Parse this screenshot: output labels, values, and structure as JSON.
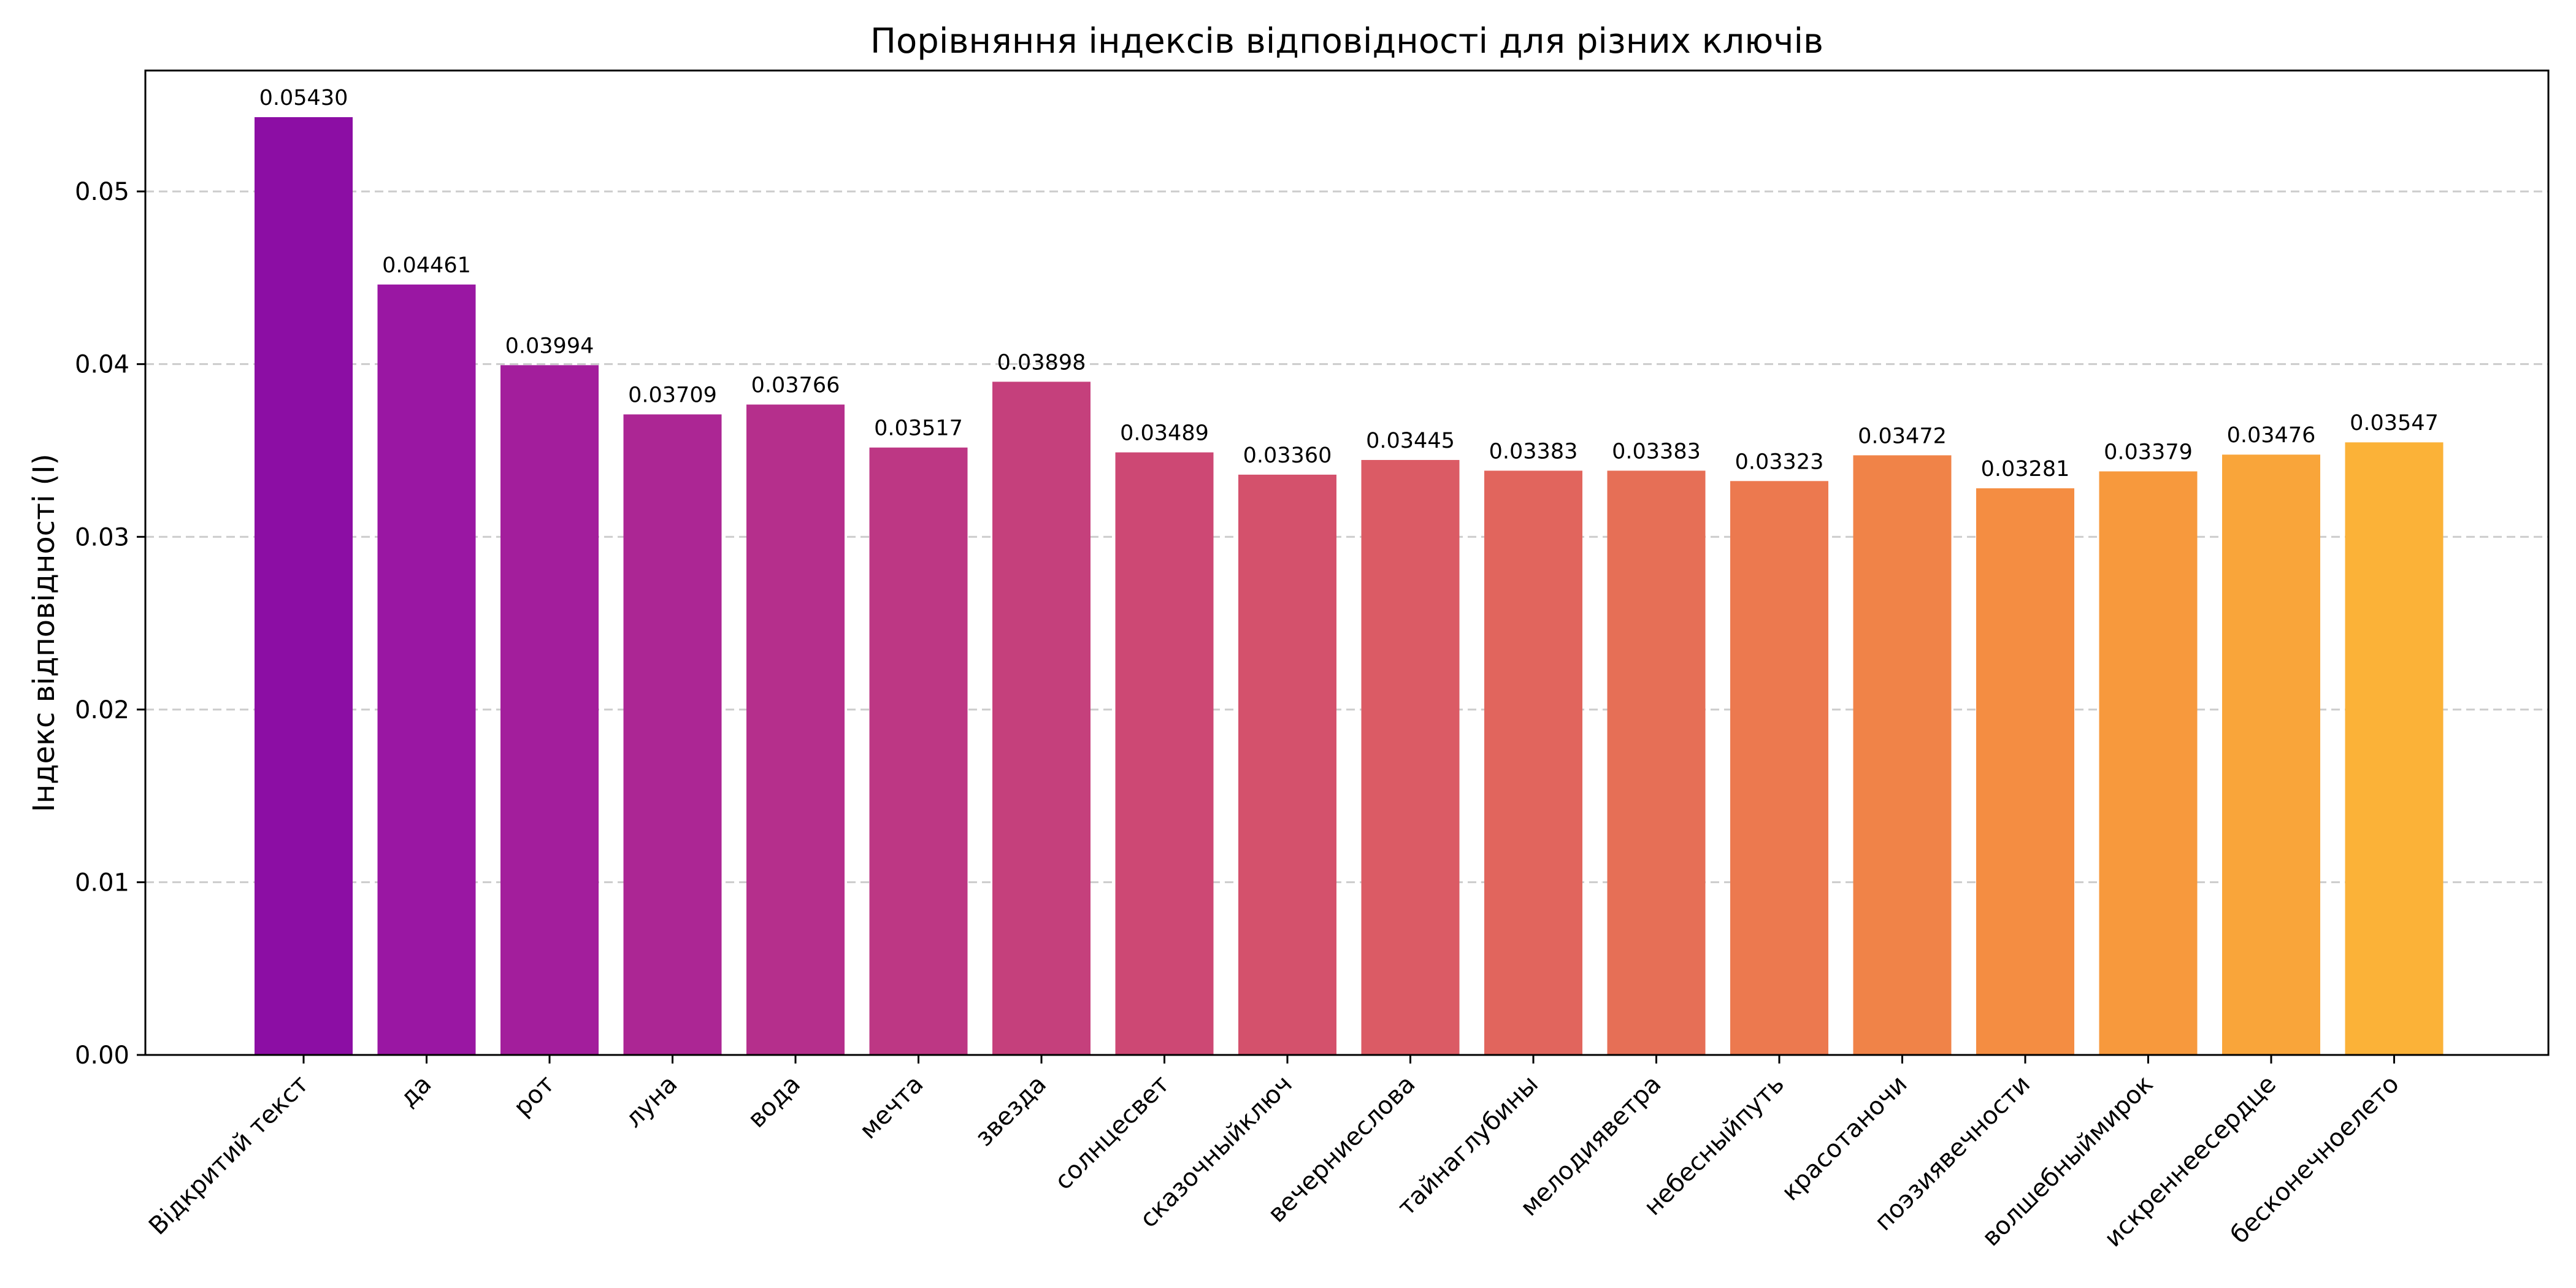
{
  "chart_data": {
    "type": "bar",
    "title": "Порівняння індексів відповідності для різних ключів",
    "xlabel": "",
    "ylabel": "Індекс відповідності (I)",
    "ylim": [
      0,
      0.057
    ],
    "yticks": [
      0.0,
      0.01,
      0.02,
      0.03,
      0.04,
      0.05
    ],
    "ytick_labels": [
      "0.00",
      "0.01",
      "0.02",
      "0.03",
      "0.04",
      "0.05"
    ],
    "grid": "y-dashed",
    "categories": [
      "Відкритий текст",
      "да",
      "рот",
      "луна",
      "вода",
      "мечта",
      "звезда",
      "солнцесвет",
      "сказочныйключ",
      "вечерниеслова",
      "тайнаглубины",
      "мелодияветра",
      "небесныйпуть",
      "красотаночи",
      "поэзиявечности",
      "волшебныймирок",
      "искреннеесердце",
      "бесконечноелето"
    ],
    "values": [
      0.0543,
      0.04461,
      0.03994,
      0.03709,
      0.03766,
      0.03517,
      0.03898,
      0.03489,
      0.0336,
      0.03445,
      0.03383,
      0.03383,
      0.03323,
      0.03472,
      0.03281,
      0.03379,
      0.03476,
      0.03547
    ],
    "value_labels": [
      "0.05430",
      "0.04461",
      "0.03994",
      "0.03709",
      "0.03766",
      "0.03517",
      "0.03898",
      "0.03489",
      "0.03360",
      "0.03445",
      "0.03383",
      "0.03383",
      "0.03323",
      "0.03472",
      "0.03281",
      "0.03379",
      "0.03476",
      "0.03547"
    ],
    "colors": [
      "#8c0ea4",
      "#9a17a3",
      "#a31e9c",
      "#ac2694",
      "#b52f8c",
      "#bd3784",
      "#c5407c",
      "#cd4874",
      "#d4516c",
      "#db5b65",
      "#e1655d",
      "#e66f56",
      "#ec794f",
      "#f08348",
      "#f48d42",
      "#f7993d",
      "#f9a53a",
      "#fbb238"
    ]
  }
}
